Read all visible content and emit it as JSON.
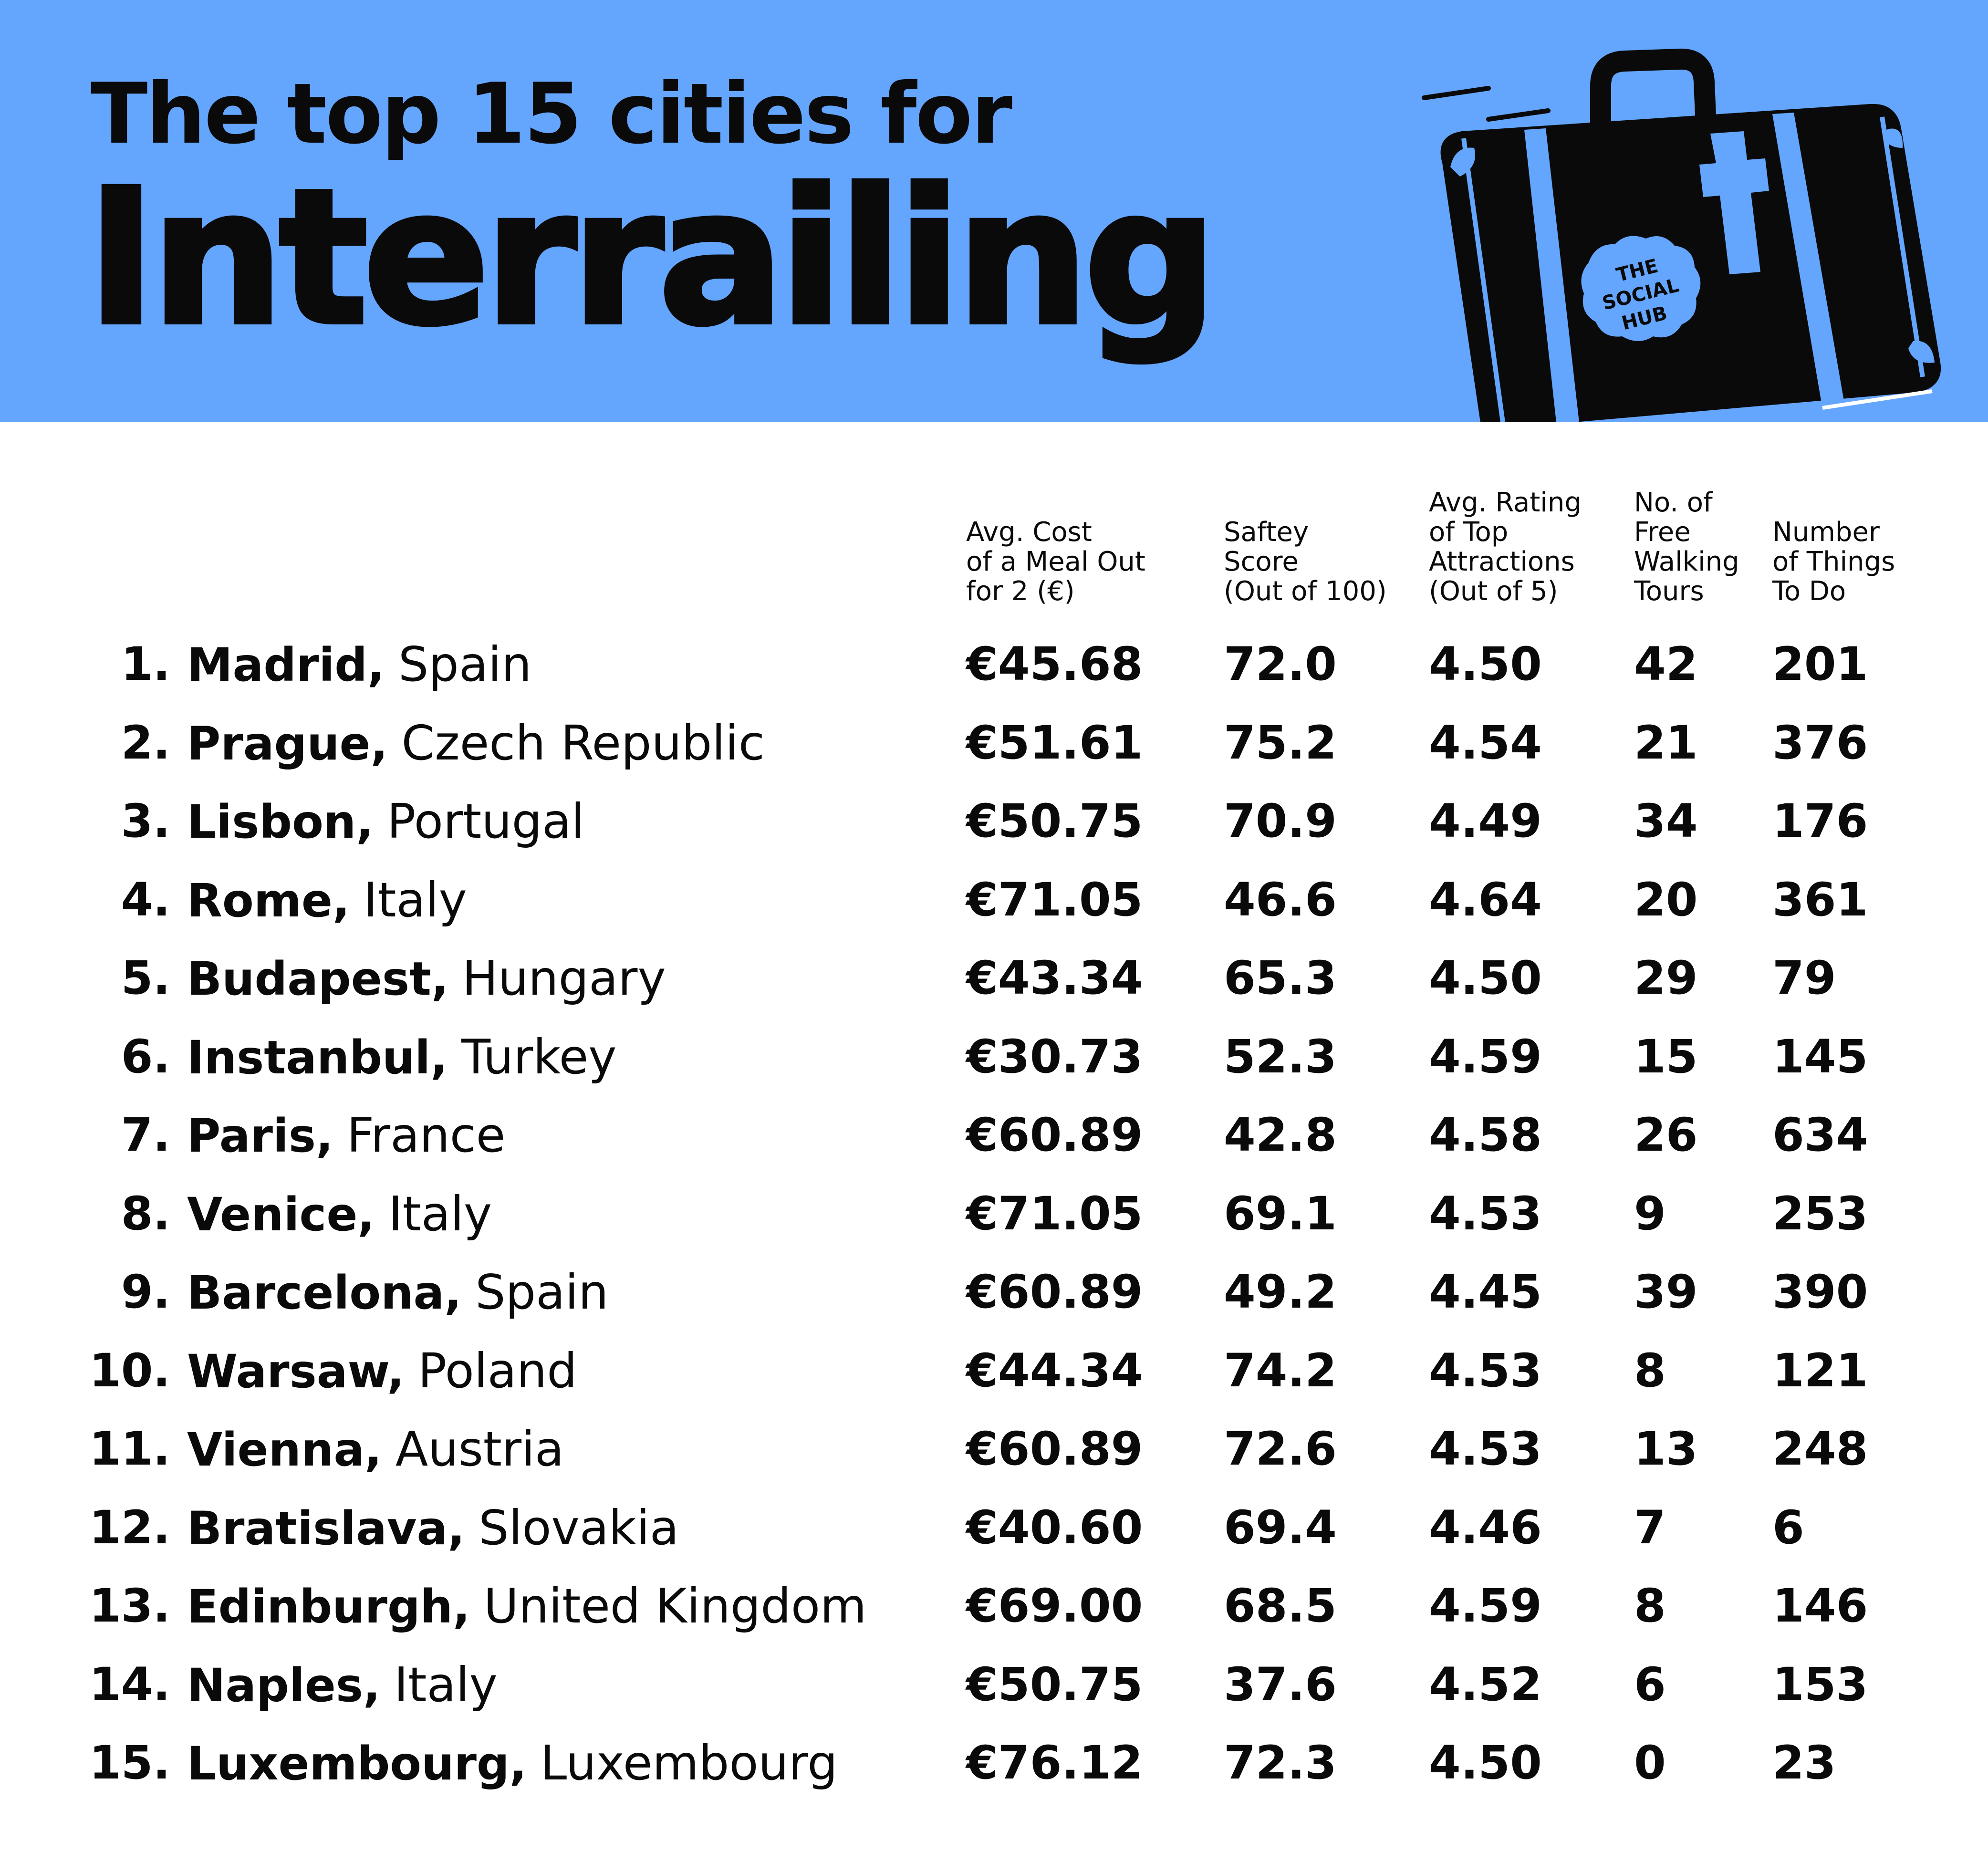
{
  "header": {
    "title_line1": "The top 15 cities for",
    "title_line2": "Interrailing",
    "logo_text": [
      "THE",
      "SOCIAL",
      "HUB"
    ],
    "background_color": "#64a5fd"
  },
  "columns": [
    "Avg. Cost\nof a Meal Out\nfor 2 (€)",
    "Saftey\nScore\n(Out of 100)",
    "Avg. Rating\nof Top\nAttractions\n(Out of 5)",
    "No. of\nFree\nWalking\nTours",
    "Number\nof Things\nTo Do"
  ],
  "rows": [
    {
      "rank": "1.",
      "city": "Madrid,",
      "country": "Spain",
      "meal": "€45.68",
      "safety": "72.0",
      "rating": "4.50",
      "tours": "42",
      "things": "201"
    },
    {
      "rank": "2.",
      "city": "Prague,",
      "country": "Czech Republic",
      "meal": "€51.61",
      "safety": "75.2",
      "rating": "4.54",
      "tours": "21",
      "things": "376"
    },
    {
      "rank": "3.",
      "city": "Lisbon,",
      "country": "Portugal",
      "meal": "€50.75",
      "safety": "70.9",
      "rating": "4.49",
      "tours": "34",
      "things": "176"
    },
    {
      "rank": "4.",
      "city": "Rome,",
      "country": "Italy",
      "meal": "€71.05",
      "safety": "46.6",
      "rating": "4.64",
      "tours": "20",
      "things": "361"
    },
    {
      "rank": "5.",
      "city": "Budapest,",
      "country": "Hungary",
      "meal": "€43.34",
      "safety": "65.3",
      "rating": "4.50",
      "tours": "29",
      "things": "79"
    },
    {
      "rank": "6.",
      "city": "Instanbul,",
      "country": "Turkey",
      "meal": "€30.73",
      "safety": "52.3",
      "rating": "4.59",
      "tours": "15",
      "things": "145"
    },
    {
      "rank": "7.",
      "city": "Paris,",
      "country": "France",
      "meal": "€60.89",
      "safety": "42.8",
      "rating": "4.58",
      "tours": "26",
      "things": "634"
    },
    {
      "rank": "8.",
      "city": "Venice,",
      "country": "Italy",
      "meal": "€71.05",
      "safety": "69.1",
      "rating": "4.53",
      "tours": "9",
      "things": "253"
    },
    {
      "rank": "9.",
      "city": "Barcelona,",
      "country": "Spain",
      "meal": "€60.89",
      "safety": "49.2",
      "rating": "4.45",
      "tours": "39",
      "things": "390"
    },
    {
      "rank": "10.",
      "city": "Warsaw,",
      "country": "Poland",
      "meal": "€44.34",
      "safety": "74.2",
      "rating": "4.53",
      "tours": "8",
      "things": "121"
    },
    {
      "rank": "11.",
      "city": "Vienna,",
      "country": "Austria",
      "meal": "€60.89",
      "safety": "72.6",
      "rating": "4.53",
      "tours": "13",
      "things": "248"
    },
    {
      "rank": "12.",
      "city": "Bratislava,",
      "country": "Slovakia",
      "meal": "€40.60",
      "safety": "69.4",
      "rating": "4.46",
      "tours": "7",
      "things": "6"
    },
    {
      "rank": "13.",
      "city": "Edinburgh,",
      "country": "United Kingdom",
      "meal": "€69.00",
      "safety": "68.5",
      "rating": "4.59",
      "tours": "8",
      "things": "146"
    },
    {
      "rank": "14.",
      "city": "Naples,",
      "country": "Italy",
      "meal": "€50.75",
      "safety": "37.6",
      "rating": "4.52",
      "tours": "6",
      "things": "153"
    },
    {
      "rank": "15.",
      "city": "Luxembourg,",
      "country": "Luxembourg",
      "meal": "€76.12",
      "safety": "72.3",
      "rating": "4.50",
      "tours": "0",
      "things": "23"
    }
  ]
}
